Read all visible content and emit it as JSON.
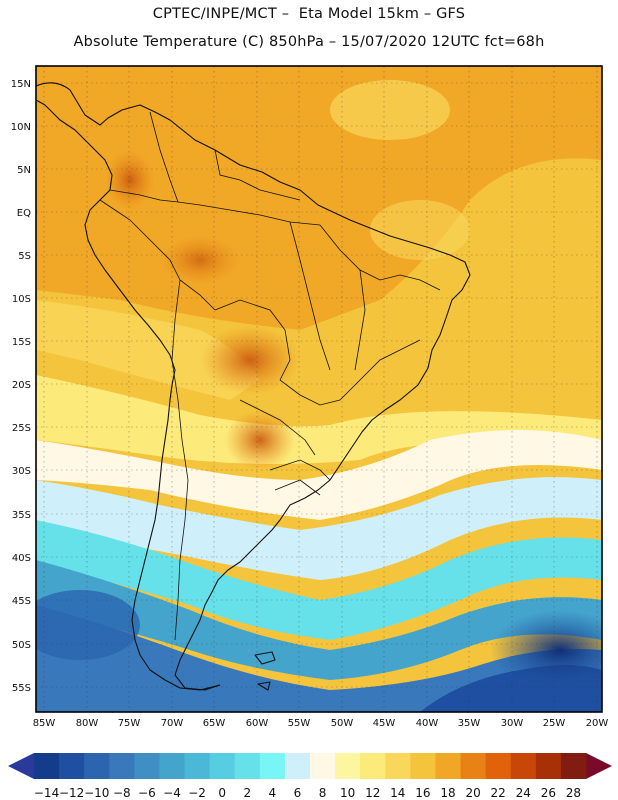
{
  "header": {
    "line1": "CPTEC/INPE/MCT –  Eta Model 15km – GFS",
    "line2": "Absolute Temperature (C) 850hPa – 15/07/2020 12UTC fct=68h"
  },
  "axes": {
    "lat_labels": [
      "15N",
      "10N",
      "5N",
      "EQ",
      "5S",
      "10S",
      "15S",
      "20S",
      "25S",
      "30S",
      "35S",
      "40S",
      "45S",
      "50S",
      "55S"
    ],
    "lon_labels": [
      "85W",
      "80W",
      "75W",
      "70W",
      "65W",
      "60W",
      "55W",
      "50W",
      "45W",
      "40W",
      "35W",
      "30W",
      "25W",
      "20W"
    ]
  },
  "colorbar": {
    "labels": [
      "-14",
      "-12",
      "-10",
      "-8",
      "-6",
      "-4",
      "-2",
      "0",
      "2",
      "4",
      "6",
      "8",
      "10",
      "12",
      "14",
      "16",
      "18",
      "20",
      "22",
      "24",
      "26",
      "28"
    ],
    "colors": [
      "#143c8c",
      "#1f4fa0",
      "#2b65b0",
      "#3878bb",
      "#3f8fc4",
      "#45a4cc",
      "#4ab8d6",
      "#56cde0",
      "#66e1ea",
      "#7af5f5",
      "#cff0fb",
      "#fff8e4",
      "#fdf6a0",
      "#fcea7a",
      "#f9d75a",
      "#f4c43c",
      "#f0a626",
      "#e98215",
      "#e0620a",
      "#c84708",
      "#a83006",
      "#801c10"
    ]
  }
}
